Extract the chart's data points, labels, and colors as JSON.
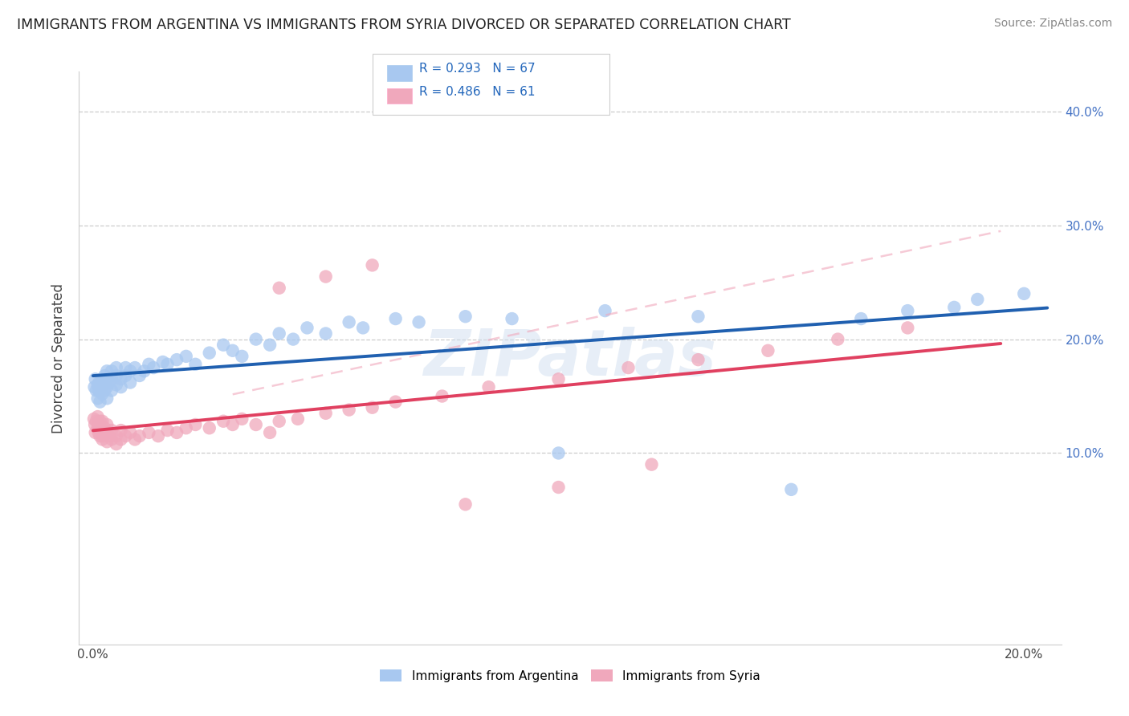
{
  "title": "IMMIGRANTS FROM ARGENTINA VS IMMIGRANTS FROM SYRIA DIVORCED OR SEPARATED CORRELATION CHART",
  "source": "Source: ZipAtlas.com",
  "ylabel": "Divorced or Separated",
  "R1": "0.293",
  "N1": "67",
  "R2": "0.486",
  "N2": "61",
  "legend_label_1": "Immigrants from Argentina",
  "legend_label_2": "Immigrants from Syria",
  "xlim": [
    -0.003,
    0.208
  ],
  "ylim": [
    -0.068,
    0.435
  ],
  "xticks": [
    0.0,
    0.05,
    0.1,
    0.15,
    0.2
  ],
  "xtick_labels": [
    "0.0%",
    "",
    "",
    "",
    "20.0%"
  ],
  "yticks": [
    0.1,
    0.2,
    0.3,
    0.4
  ],
  "ytick_labels": [
    "10.0%",
    "20.0%",
    "30.0%",
    "40.0%"
  ],
  "color_argentina": "#A8C8F0",
  "color_syria": "#F0A8BC",
  "line_color_argentina": "#2060B0",
  "line_color_syria": "#E04060",
  "dashed_line_color": "#F0A8BC",
  "background_color": "#FFFFFF",
  "title_fontsize": 12.5,
  "source_fontsize": 10,
  "axis_label_fontsize": 12,
  "tick_fontsize": 11,
  "legend_fontsize": 11,
  "watermark": "ZIPatlas",
  "argentina_x": [
    0.0003,
    0.0005,
    0.0007,
    0.001,
    0.001,
    0.0012,
    0.0013,
    0.0015,
    0.0015,
    0.002,
    0.002,
    0.002,
    0.0022,
    0.0025,
    0.0025,
    0.003,
    0.003,
    0.003,
    0.003,
    0.0035,
    0.004,
    0.004,
    0.004,
    0.005,
    0.005,
    0.005,
    0.006,
    0.006,
    0.007,
    0.007,
    0.008,
    0.008,
    0.009,
    0.01,
    0.011,
    0.012,
    0.013,
    0.015,
    0.016,
    0.018,
    0.02,
    0.022,
    0.025,
    0.028,
    0.03,
    0.032,
    0.035,
    0.038,
    0.04,
    0.043,
    0.046,
    0.05,
    0.055,
    0.058,
    0.065,
    0.07,
    0.08,
    0.09,
    0.1,
    0.11,
    0.13,
    0.15,
    0.165,
    0.175,
    0.185,
    0.19,
    0.2
  ],
  "argentina_y": [
    0.158,
    0.165,
    0.155,
    0.148,
    0.16,
    0.155,
    0.162,
    0.145,
    0.155,
    0.152,
    0.158,
    0.165,
    0.16,
    0.155,
    0.168,
    0.148,
    0.158,
    0.165,
    0.172,
    0.162,
    0.155,
    0.165,
    0.172,
    0.16,
    0.168,
    0.175,
    0.158,
    0.165,
    0.168,
    0.175,
    0.162,
    0.172,
    0.175,
    0.168,
    0.172,
    0.178,
    0.175,
    0.18,
    0.178,
    0.182,
    0.185,
    0.178,
    0.188,
    0.195,
    0.19,
    0.185,
    0.2,
    0.195,
    0.205,
    0.2,
    0.21,
    0.205,
    0.215,
    0.21,
    0.218,
    0.215,
    0.22,
    0.218,
    0.1,
    0.225,
    0.22,
    0.068,
    0.218,
    0.225,
    0.228,
    0.235,
    0.24
  ],
  "syria_x": [
    0.0002,
    0.0004,
    0.0005,
    0.0007,
    0.001,
    0.001,
    0.0012,
    0.0013,
    0.0015,
    0.0015,
    0.002,
    0.002,
    0.002,
    0.0022,
    0.0025,
    0.003,
    0.003,
    0.003,
    0.0035,
    0.004,
    0.004,
    0.005,
    0.005,
    0.006,
    0.006,
    0.007,
    0.008,
    0.009,
    0.01,
    0.012,
    0.014,
    0.016,
    0.018,
    0.02,
    0.022,
    0.025,
    0.028,
    0.03,
    0.032,
    0.035,
    0.038,
    0.04,
    0.044,
    0.05,
    0.055,
    0.06,
    0.065,
    0.075,
    0.085,
    0.1,
    0.115,
    0.13,
    0.145,
    0.16,
    0.175,
    0.04,
    0.05,
    0.06,
    0.08,
    0.1,
    0.12
  ],
  "syria_y": [
    0.13,
    0.125,
    0.118,
    0.128,
    0.122,
    0.132,
    0.118,
    0.125,
    0.115,
    0.128,
    0.112,
    0.12,
    0.128,
    0.115,
    0.122,
    0.11,
    0.118,
    0.125,
    0.115,
    0.112,
    0.12,
    0.115,
    0.108,
    0.112,
    0.12,
    0.115,
    0.118,
    0.112,
    0.115,
    0.118,
    0.115,
    0.12,
    0.118,
    0.122,
    0.125,
    0.122,
    0.128,
    0.125,
    0.13,
    0.125,
    0.118,
    0.128,
    0.13,
    0.135,
    0.138,
    0.14,
    0.145,
    0.15,
    0.158,
    0.165,
    0.175,
    0.182,
    0.19,
    0.2,
    0.21,
    0.245,
    0.255,
    0.265,
    0.055,
    0.07,
    0.09
  ]
}
